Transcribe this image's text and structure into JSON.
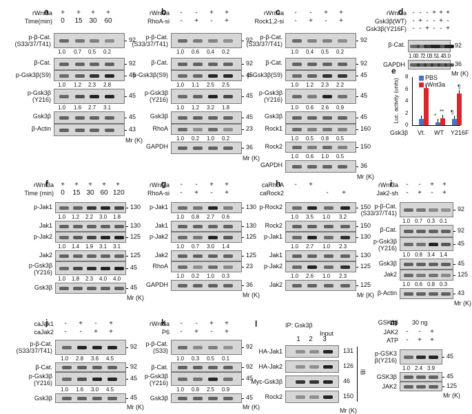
{
  "a": {
    "label": "a",
    "trt": [
      "rWnt3a",
      "Time(min)"
    ],
    "signs": [
      [
        "+",
        "+",
        "+",
        "+"
      ],
      [
        "0",
        "15",
        "30",
        "60"
      ]
    ],
    "rows": [
      {
        "name": "p-β-Cat.\n(S33/37/T41)",
        "mw": "92",
        "q": [
          "1.0",
          "0.7",
          "0.5",
          "0.2"
        ]
      },
      {
        "name": "β-Cat.",
        "mw": "92",
        "q": []
      },
      {
        "name": "p-Gsk3β(S9)",
        "mw": "45",
        "q": [
          "1.0",
          "1.2",
          "2.3",
          "2.8"
        ]
      },
      {
        "name": "p-Gsk3β\n(Y216)",
        "mw": "45",
        "q": [
          "1.0",
          "1.6",
          "2.7",
          "3.1"
        ]
      },
      {
        "name": "Gsk3β",
        "mw": "45",
        "q": []
      },
      {
        "name": "β-Actin",
        "mw": "43",
        "q": []
      }
    ],
    "mr": "Mr (K)"
  },
  "b": {
    "label": "b",
    "trt": [
      "rWnt3a",
      "RhoA-si"
    ],
    "signs": [
      [
        "-",
        "-",
        "+",
        "+"
      ],
      [
        "-",
        "+",
        "-",
        "+"
      ]
    ],
    "rows": [
      {
        "name": "p-β-Cat.\n(S33/37/T41)",
        "mw": "92",
        "q": [
          "1.0",
          "0.6",
          "0.4",
          "0.2"
        ]
      },
      {
        "name": "β-Cat.",
        "mw": "92",
        "q": []
      },
      {
        "name": "p-Gsk3β(S9)",
        "mw": "45",
        "q": [
          "1.0",
          "1.1",
          "2.5",
          "2.5"
        ]
      },
      {
        "name": "p-Gsk3β\n(Y216)",
        "mw": "45",
        "q": [
          "1.0",
          "1.2",
          "3.2",
          "1.8"
        ]
      },
      {
        "name": "Gsk3β",
        "mw": "45",
        "q": []
      },
      {
        "name": "RhoA",
        "mw": "23",
        "q": [
          "1.0",
          "0.2",
          "1.0",
          "0.2"
        ]
      },
      {
        "name": "GAPDH",
        "mw": "36",
        "q": []
      }
    ],
    "mr": "Mr (K)"
  },
  "c": {
    "label": "c",
    "trt": [
      "rWnt3a",
      "Rock1,2-si"
    ],
    "signs": [
      [
        "-",
        "-",
        "+",
        "+"
      ],
      [
        "-",
        "+",
        "-",
        "+"
      ]
    ],
    "rows": [
      {
        "name": "p-β-Cat.\n(S33/37/T41)",
        "mw": "92",
        "q": [
          "1.0",
          "0.4",
          "0.5",
          "0.2"
        ]
      },
      {
        "name": "β-Cat.",
        "mw": "92",
        "q": []
      },
      {
        "name": "p-Gsk3β(S9)",
        "mw": "45",
        "q": [
          "1.0",
          "1.2",
          "2.3",
          "2.2"
        ]
      },
      {
        "name": "p-Gsk3β\n(Y216)",
        "mw": "45",
        "q": [
          "1.0",
          "0.6",
          "2.6",
          "0.9"
        ]
      },
      {
        "name": "Gsk3β",
        "mw": "45",
        "q": []
      },
      {
        "name": "Rock1",
        "mw": "160",
        "q": [
          "1.0",
          "0.5",
          "0.8",
          "0.5"
        ]
      },
      {
        "name": "Rock2",
        "mw": "150",
        "q": [
          "1.0",
          "0.6",
          "1.0",
          "0.5"
        ]
      },
      {
        "name": "GAPDH",
        "mw": "36",
        "q": []
      }
    ],
    "mr": "Mr (K)"
  },
  "d": {
    "label": "d",
    "trt": [
      "rWnt3a",
      "Gsk3β(WT)",
      "Gsk3β(Y216F)"
    ],
    "signs": [
      [
        "-",
        "-",
        "-",
        "+",
        "+",
        "+"
      ],
      [
        "-",
        "+",
        "-",
        "-",
        "+",
        "-"
      ],
      [
        "-",
        "-",
        "+",
        "-",
        "-",
        "+"
      ]
    ],
    "rows": [
      {
        "name": "β-Cat.",
        "mw": "92",
        "q": [
          "1.0",
          "0.7",
          "2.0",
          "3.5",
          "1.4",
          "3.0"
        ]
      },
      {
        "name": "GAPDH",
        "mw": "36",
        "q": []
      }
    ],
    "mr": "Mr (K)"
  },
  "e": {
    "label": "e",
    "chart_data": {
      "type": "bar",
      "categories": [
        "Vt.",
        "WT",
        "Y216F"
      ],
      "xlabel": "Gsk3β",
      "ylabel": "Luc. activity (units)",
      "ylim": [
        0,
        8
      ],
      "yticks": [
        "0",
        "2",
        "4",
        "6",
        "8"
      ],
      "series": [
        {
          "name": "PBS",
          "color": "#4472c4",
          "values": [
            1.0,
            0.5,
            1.0
          ]
        },
        {
          "name": "rWnt3a",
          "color": "#d9262d",
          "values": [
            6.2,
            1.2,
            5.3
          ]
        }
      ],
      "annotations": [
        "**",
        "*",
        "**",
        "¶",
        "¶"
      ]
    }
  },
  "f": {
    "label": "f",
    "trt": [
      "rWnt3a",
      "Time (min)"
    ],
    "signs": [
      [
        "+",
        "+",
        "+",
        "+",
        "+"
      ],
      [
        "0",
        "15",
        "30",
        "60",
        "120"
      ]
    ],
    "rows": [
      {
        "name": "p-Jak1",
        "mw": "130",
        "q": [
          "1.0",
          "1.2",
          "2.2",
          "3.0",
          "1.8"
        ]
      },
      {
        "name": "Jak1",
        "mw": "130",
        "q": []
      },
      {
        "name": "p-Jak2",
        "mw": "125",
        "q": [
          "1.0",
          "1.4",
          "1.9",
          "3.1",
          "3.1"
        ]
      },
      {
        "name": "Jak2",
        "mw": "125",
        "q": []
      },
      {
        "name": "p-Gsk3β\n(Y216)",
        "mw": "45",
        "q": [
          "1.0",
          "1.8",
          "2.3",
          "4.0",
          "4.0"
        ]
      },
      {
        "name": "Gsk3β",
        "mw": "45",
        "q": []
      }
    ],
    "mr": "Mr (K)"
  },
  "g": {
    "label": "g",
    "trt": [
      "rWnt3a",
      "RhoA-si"
    ],
    "signs": [
      [
        "-",
        "-",
        "+",
        "+"
      ],
      [
        "-",
        "+",
        "-",
        "+"
      ]
    ],
    "rows": [
      {
        "name": "p-Jak1",
        "mw": "130",
        "q": [
          "1.0",
          "0.8",
          "2.7",
          "0.6"
        ]
      },
      {
        "name": "Jak1",
        "mw": "130",
        "q": []
      },
      {
        "name": "p-Jak2",
        "mw": "125",
        "q": [
          "1.0",
          "0.7",
          "3.0",
          "1.4"
        ]
      },
      {
        "name": "Jak2",
        "mw": "125",
        "q": []
      },
      {
        "name": "RhoA",
        "mw": "23",
        "q": [
          "1.0",
          "0.2",
          "1.0",
          "0.3"
        ]
      },
      {
        "name": "GAPDH",
        "mw": "36",
        "q": []
      }
    ],
    "mr": "Mr (K)"
  },
  "h": {
    "label": "h",
    "trt": [
      "caRhoA",
      "caRock2"
    ],
    "signs": [
      [
        "-",
        "+",
        "",
        ""
      ],
      [
        "",
        "",
        "-",
        "+"
      ]
    ],
    "rows": [
      {
        "name": "p-Rock2",
        "mw": "150",
        "q": [
          "1.0",
          "3.5",
          "1.0",
          "3.2"
        ]
      },
      {
        "name": "Rock2",
        "mw": "150",
        "q": []
      },
      {
        "name": "p-Jak1",
        "mw": "130",
        "q": [
          "1.0",
          "2.7",
          "1.0",
          "2.3"
        ]
      },
      {
        "name": "Jak1",
        "mw": "130",
        "q": []
      },
      {
        "name": "p-Jak2",
        "mw": "125",
        "q": [
          "1.0",
          "2.6",
          "1.0",
          "2.3"
        ]
      },
      {
        "name": "Jak2",
        "mw": "125",
        "q": []
      }
    ],
    "mr": "Mr (K)"
  },
  "i": {
    "label": "i",
    "trt": [
      "rWnt3a",
      "Jak2-sh"
    ],
    "signs": [
      [
        "-",
        "-",
        "+",
        "+"
      ],
      [
        "-",
        "+",
        "-",
        "+"
      ]
    ],
    "rows": [
      {
        "name": "p-β-Cat.\n(S33/37/T41)",
        "mw": "92",
        "q": [
          "1.0",
          "0.7",
          "0.3",
          "0.1"
        ]
      },
      {
        "name": "β-Cat.",
        "mw": "92",
        "q": []
      },
      {
        "name": "p-Gsk3β\n(Y216)",
        "mw": "45",
        "q": [
          "1.0",
          "0.8",
          "3.4",
          "1.4"
        ]
      },
      {
        "name": "Gsk3β",
        "mw": "45",
        "q": []
      },
      {
        "name": "Jak2",
        "mw": "125",
        "q": [
          "1.0",
          "0.6",
          "0.8",
          "0.3"
        ]
      },
      {
        "name": "β-Actin",
        "mw": "43",
        "q": []
      }
    ],
    "mr": "Mr (K)"
  },
  "j": {
    "label": "j",
    "trt": [
      "caJak1",
      "caJak2"
    ],
    "signs": [
      [
        "-",
        "+",
        "-",
        "+"
      ],
      [
        "-",
        "-",
        "+",
        "+"
      ]
    ],
    "rows": [
      {
        "name": "p-β-Cat.\n(S33/37/T41)",
        "mw": "92",
        "q": [
          "1.0",
          "2.8",
          "3.6",
          "4.5"
        ]
      },
      {
        "name": "β-Cat.",
        "mw": "92",
        "q": []
      },
      {
        "name": "p-Gsk3β\n(Y216)",
        "mw": "45",
        "q": [
          "1.0",
          "1.6",
          "3.0",
          "4.5"
        ]
      },
      {
        "name": "Gsk3β",
        "mw": "45",
        "q": []
      }
    ],
    "mr": "Mr (K)"
  },
  "k": {
    "label": "k",
    "trt": [
      "rWnt3a",
      "P6"
    ],
    "signs": [
      [
        "-",
        "-",
        "+",
        "+"
      ],
      [
        "-",
        "+",
        "-",
        "+"
      ]
    ],
    "rows": [
      {
        "name": "p-β-Cat.\n(S33)",
        "mw": "92",
        "q": [
          "1.0",
          "0.3",
          "0.5",
          "0.1"
        ]
      },
      {
        "name": "β-Cat.",
        "mw": "92",
        "q": []
      },
      {
        "name": "p-Gsk3β\n(Y216)",
        "mw": "45",
        "q": [
          "1.0",
          "0.8",
          "2.5",
          "0.9"
        ]
      },
      {
        "name": "Gsk3β",
        "mw": "45",
        "q": []
      }
    ],
    "mr": "Mr (K)"
  },
  "l": {
    "label": "l",
    "ip": "IP: Gsk3β",
    "input": "Input",
    "lanes": [
      "1",
      "2",
      "3"
    ],
    "ib": "IB",
    "rows": [
      {
        "name": "HA-Jak1",
        "mw": "131"
      },
      {
        "name": "HA-Jak2",
        "mw": "126"
      },
      {
        "name": "Myc-Gsk3β",
        "mw": "46"
      },
      {
        "name": "Rock2",
        "mw": "150"
      }
    ],
    "mr": "Mr (K)"
  },
  "m": {
    "label": "m",
    "header": [
      "GSK3β",
      "30 ng"
    ],
    "trt": [
      "JAK2",
      "ATP"
    ],
    "signs": [
      [
        "-",
        "-",
        "+"
      ],
      [
        "-",
        "+",
        "+"
      ]
    ],
    "rows": [
      {
        "name": "p-GSK3\nβ(Y216)",
        "mw": "45",
        "q": [
          "1.0",
          "2.4",
          "3.9"
        ]
      },
      {
        "name": "GSK3β",
        "mw": "45",
        "q": []
      },
      {
        "name": "JAK2",
        "mw": "125",
        "q": []
      }
    ],
    "mr": "Mr (K)"
  }
}
